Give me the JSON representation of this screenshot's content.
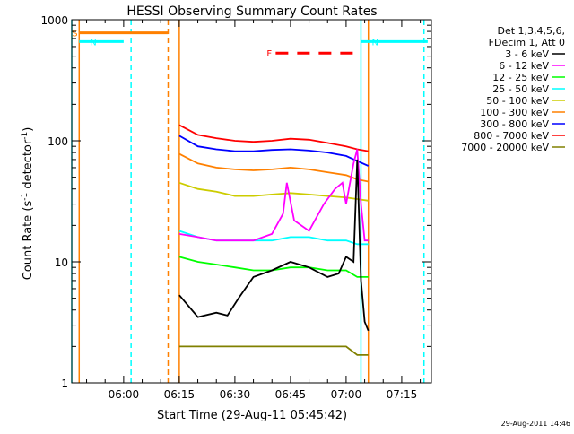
{
  "chart_data": {
    "type": "line",
    "title": "HESSI Observing Summary Count Rates",
    "xlabel": "Start Time (29-Aug-11 05:45:42)",
    "ylabel_main": "Count Rate (s",
    "ylabel_sup1": "-1",
    "ylabel_mid": " detector",
    "ylabel_sup2": "-1",
    "ylabel_end": ")",
    "y_scale": "log",
    "ylim": [
      1,
      1000
    ],
    "xlim": [
      "05:46",
      "07:23"
    ],
    "x_ticks": [
      "06:00",
      "06:15",
      "06:30",
      "06:45",
      "07:00",
      "07:15"
    ],
    "y_ticks": [
      "1",
      "10",
      "100",
      "1000"
    ],
    "grid": false,
    "legend_placement": "right",
    "legend_header": [
      "Det 1,3,4,5,6,",
      "FDecim 1, Att 0"
    ],
    "series": [
      {
        "name": "3 - 6 keV",
        "color": "#000000",
        "x": [
          "06:15",
          "06:20",
          "06:25",
          "06:28",
          "06:31",
          "06:35",
          "06:40",
          "06:45",
          "06:50",
          "06:55",
          "06:58",
          "07:00",
          "07:02",
          "07:03",
          "07:04",
          "07:05",
          "07:06"
        ],
        "values": [
          5.3,
          3.5,
          3.8,
          3.6,
          5.0,
          7.5,
          8.5,
          10,
          9,
          7.5,
          8,
          11,
          10,
          70,
          7,
          3.2,
          2.7
        ]
      },
      {
        "name": "6 - 12 keV",
        "color": "#ff00ff",
        "x": [
          "06:15",
          "06:20",
          "06:25",
          "06:30",
          "06:35",
          "06:40",
          "06:43",
          "06:44",
          "06:46",
          "06:50",
          "06:54",
          "06:57",
          "06:59",
          "07:00",
          "07:02",
          "07:03",
          "07:04",
          "07:05",
          "07:06"
        ],
        "values": [
          17,
          16,
          15,
          15,
          15,
          17,
          25,
          45,
          22,
          18,
          30,
          40,
          45,
          30,
          65,
          85,
          30,
          15,
          15
        ]
      },
      {
        "name": "12 - 25 keV",
        "color": "#00ff00",
        "x": [
          "06:15",
          "06:20",
          "06:25",
          "06:30",
          "06:35",
          "06:40",
          "06:45",
          "06:50",
          "06:55",
          "07:00",
          "07:03",
          "07:06"
        ],
        "values": [
          11,
          10,
          9.5,
          9,
          8.5,
          8.5,
          9,
          9,
          8.5,
          8.5,
          7.5,
          7.5
        ]
      },
      {
        "name": "25 - 50 keV",
        "color": "#00ffff",
        "x": [
          "06:15",
          "06:20",
          "06:25",
          "06:30",
          "06:35",
          "06:40",
          "06:45",
          "06:50",
          "06:55",
          "07:00",
          "07:03",
          "07:06"
        ],
        "values": [
          18,
          16,
          15,
          15,
          15,
          15,
          16,
          16,
          15,
          15,
          14,
          14
        ]
      },
      {
        "name": "50 - 100 keV",
        "color": "#cccc00",
        "x": [
          "06:15",
          "06:20",
          "06:25",
          "06:30",
          "06:35",
          "06:40",
          "06:45",
          "06:50",
          "06:55",
          "07:00",
          "07:03",
          "07:06"
        ],
        "values": [
          45,
          40,
          38,
          35,
          35,
          36,
          37,
          36,
          35,
          34,
          33,
          32
        ]
      },
      {
        "name": "100 - 300 keV",
        "color": "#ff8000",
        "x": [
          "06:15",
          "06:20",
          "06:25",
          "06:30",
          "06:35",
          "06:40",
          "06:45",
          "06:50",
          "06:55",
          "07:00",
          "07:03",
          "07:06"
        ],
        "values": [
          78,
          65,
          60,
          58,
          57,
          58,
          60,
          58,
          55,
          52,
          48,
          46
        ]
      },
      {
        "name": "300 - 800 keV",
        "color": "#0000ff",
        "x": [
          "06:15",
          "06:20",
          "06:25",
          "06:30",
          "06:35",
          "06:40",
          "06:45",
          "06:50",
          "06:55",
          "07:00",
          "07:03",
          "07:06"
        ],
        "values": [
          110,
          90,
          85,
          82,
          82,
          84,
          85,
          83,
          80,
          75,
          68,
          62
        ]
      },
      {
        "name": "800 - 7000 keV",
        "color": "#ff0000",
        "x": [
          "06:15",
          "06:20",
          "06:25",
          "06:30",
          "06:35",
          "06:40",
          "06:45",
          "06:50",
          "06:55",
          "07:00",
          "07:03",
          "07:06"
        ],
        "values": [
          135,
          112,
          105,
          100,
          98,
          100,
          104,
          102,
          96,
          90,
          85,
          82
        ]
      },
      {
        "name": "7000 - 20000 keV",
        "color": "#808000",
        "x": [
          "06:15",
          "06:20",
          "06:25",
          "06:30",
          "06:35",
          "06:40",
          "06:45",
          "06:50",
          "06:55",
          "07:00",
          "07:03",
          "07:05",
          "07:06"
        ],
        "values": [
          2,
          2,
          2,
          2,
          2,
          2,
          2,
          2,
          2,
          2,
          1.7,
          1.7,
          1.7
        ]
      }
    ],
    "flags": [
      {
        "label": "S",
        "color": "#ff8000",
        "x": [
          "05:48",
          "06:12"
        ],
        "level": 780
      },
      {
        "label": "N",
        "color": "#00ffff",
        "x": [
          "05:48",
          "06:00"
        ],
        "level": 660
      },
      {
        "label": "N",
        "color": "#00ffff",
        "x": [
          "07:04",
          "07:22"
        ],
        "level": 660
      },
      {
        "label": "F",
        "color": "#ff0000",
        "x": [
          "06:41",
          "07:02"
        ],
        "level": 530
      }
    ],
    "region_markers": [
      {
        "color": "#00ffff",
        "style": "solid",
        "x": "05:46"
      },
      {
        "color": "#ff8000",
        "style": "solid",
        "x": "05:48"
      },
      {
        "color": "#00ffff",
        "style": "dashed",
        "x": "06:02"
      },
      {
        "color": "#ff8000",
        "style": "dashed",
        "x": "06:12"
      },
      {
        "color": "#ff8000",
        "style": "solid",
        "x": "06:15"
      },
      {
        "color": "#00ffff",
        "style": "solid",
        "x": "07:04"
      },
      {
        "color": "#ff8000",
        "style": "solid",
        "x": "07:06"
      },
      {
        "color": "#00ffff",
        "style": "dashed",
        "x": "07:21"
      }
    ]
  },
  "footer": {
    "timestamp": "29-Aug-2011 14:46"
  }
}
